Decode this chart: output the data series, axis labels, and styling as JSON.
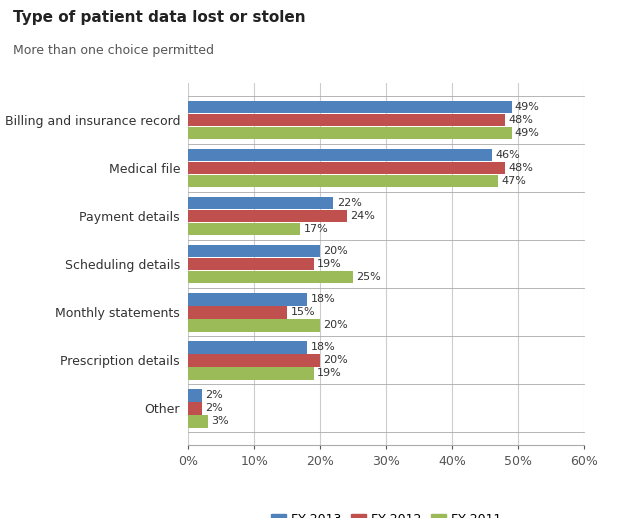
{
  "title": "Type of patient data lost or stolen",
  "subtitle": "More than one choice permitted",
  "categories": [
    "Billing and insurance record",
    "Medical file",
    "Payment details",
    "Scheduling details",
    "Monthly statements",
    "Prescription details",
    "Other"
  ],
  "series": {
    "FY 2013": [
      49,
      46,
      22,
      20,
      18,
      18,
      2
    ],
    "FY 2012": [
      48,
      48,
      24,
      19,
      15,
      20,
      2
    ],
    "FY 2011": [
      49,
      47,
      17,
      25,
      20,
      19,
      3
    ]
  },
  "colors": {
    "FY 2013": "#4F81BD",
    "FY 2012": "#C0504D",
    "FY 2011": "#9BBB59"
  },
  "xlim": [
    0,
    60
  ],
  "xticks": [
    0,
    10,
    20,
    30,
    40,
    50,
    60
  ],
  "xtick_labels": [
    "0%",
    "10%",
    "20%",
    "30%",
    "40%",
    "50%",
    "60%"
  ],
  "bar_height": 0.26,
  "bar_spacing": 0.27,
  "value_fontsize": 8,
  "label_fontsize": 9,
  "title_fontsize": 11,
  "subtitle_fontsize": 9,
  "legend_fontsize": 9,
  "background_color": "#ffffff",
  "grid_color": "#cccccc",
  "separator_color": "#aaaaaa"
}
